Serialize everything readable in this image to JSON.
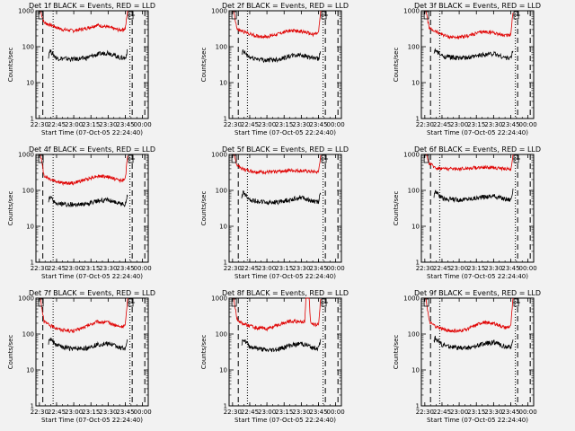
{
  "window": {
    "background": "#f2f2f2"
  },
  "colors": {
    "events": "#000000",
    "lld": "#e00000",
    "axes": "#000000",
    "markers": "#000000"
  },
  "chart_data": [
    {
      "type": "line",
      "title": "Det 1f BLACK = Events, RED = LLD",
      "xlabel": "Start Time (07-Oct-05 22:24:40)",
      "ylabel": "Counts/sec",
      "yscale": "log",
      "ylim": [
        1,
        1000
      ],
      "xlim": [
        "22:27",
        "00:05"
      ],
      "x_ticks": [
        "22:30",
        "22:45",
        "23:00",
        "23:15",
        "23:30",
        "23:45",
        "00:00"
      ],
      "y_ticks": [
        "1",
        "10",
        "100",
        "1000"
      ],
      "legend": "none",
      "grid": false,
      "markers": {
        "dashed": [
          "22:33",
          "23:51",
          "00:02"
        ],
        "dotted": [
          "22:42",
          "23:49"
        ]
      },
      "series": [
        {
          "name": "RED = LLD",
          "x": [
            "22:31",
            "22:34",
            "22:40",
            "22:50",
            "23:00",
            "23:10",
            "23:20",
            "23:30",
            "23:40",
            "23:45",
            "23:47"
          ],
          "values": [
            1000,
            470,
            400,
            300,
            280,
            320,
            400,
            350,
            290,
            320,
            1000
          ]
        },
        {
          "name": "BLACK = Events",
          "x": [
            "22:38",
            "22:39",
            "22:45",
            "23:00",
            "23:10",
            "23:20",
            "23:30",
            "23:40",
            "23:45",
            "23:47"
          ],
          "values": [
            55,
            80,
            48,
            45,
            48,
            60,
            70,
            50,
            48,
            80
          ]
        }
      ]
    },
    {
      "type": "line",
      "title": "Det 2f BLACK = Events, RED = LLD",
      "xlabel": "Start Time (07-Oct-05 22:24:40)",
      "ylabel": "Counts/sec",
      "yscale": "log",
      "ylim": [
        1,
        1000
      ],
      "xlim": [
        "22:27",
        "00:05"
      ],
      "x_ticks": [
        "22:30",
        "22:45",
        "23:00",
        "23:15",
        "23:30",
        "23:45",
        "00:00"
      ],
      "y_ticks": [
        "1",
        "10",
        "100",
        "1000"
      ],
      "legend": "none",
      "grid": false,
      "markers": {
        "dashed": [
          "22:35",
          "23:51",
          "00:02"
        ],
        "dotted": [
          "22:43",
          "23:49"
        ]
      },
      "series": [
        {
          "name": "RED = LLD",
          "x": [
            "22:31",
            "22:34",
            "22:40",
            "22:50",
            "23:00",
            "23:10",
            "23:20",
            "23:30",
            "23:40",
            "23:45",
            "23:47"
          ],
          "values": [
            1000,
            300,
            260,
            200,
            190,
            230,
            280,
            270,
            220,
            240,
            1000
          ]
        },
        {
          "name": "BLACK = Events",
          "x": [
            "22:38",
            "22:39",
            "22:45",
            "23:00",
            "23:10",
            "23:20",
            "23:30",
            "23:40",
            "23:45",
            "23:47"
          ],
          "values": [
            55,
            75,
            50,
            42,
            45,
            55,
            60,
            48,
            45,
            75
          ]
        }
      ]
    },
    {
      "type": "line",
      "title": "Det 3f BLACK = Events, RED = LLD",
      "xlabel": "Start Time (07-Oct-05 22:24:40)",
      "ylabel": "Counts/sec",
      "yscale": "log",
      "ylim": [
        1,
        1000
      ],
      "xlim": [
        "22:27",
        "00:05"
      ],
      "x_ticks": [
        "22:30",
        "22:45",
        "23:00",
        "23:15",
        "23:30",
        "23:45",
        "00:00"
      ],
      "y_ticks": [
        "1",
        "10",
        "100",
        "1000"
      ],
      "legend": "none",
      "grid": false,
      "markers": {
        "dashed": [
          "22:35",
          "23:51",
          "00:02"
        ],
        "dotted": [
          "22:43",
          "23:49"
        ]
      },
      "series": [
        {
          "name": "RED = LLD",
          "x": [
            "22:31",
            "22:34",
            "22:40",
            "22:50",
            "23:00",
            "23:10",
            "23:20",
            "23:30",
            "23:40",
            "23:45",
            "23:47"
          ],
          "values": [
            1000,
            320,
            260,
            190,
            180,
            210,
            260,
            250,
            200,
            220,
            1000
          ]
        },
        {
          "name": "BLACK = Events",
          "x": [
            "22:38",
            "22:39",
            "22:45",
            "23:00",
            "23:10",
            "23:20",
            "23:30",
            "23:40",
            "23:45",
            "23:47"
          ],
          "values": [
            60,
            80,
            55,
            48,
            50,
            60,
            65,
            50,
            48,
            80
          ]
        }
      ]
    },
    {
      "type": "line",
      "title": "Det 4f BLACK = Events, RED = LLD",
      "xlabel": "Start Time (07-Oct-05 22:24:40)",
      "ylabel": "Counts/sec",
      "yscale": "log",
      "ylim": [
        1,
        1000
      ],
      "xlim": [
        "22:27",
        "00:05"
      ],
      "x_ticks": [
        "22:30",
        "22:45",
        "23:00",
        "23:15",
        "23:30",
        "23:45",
        "00:00"
      ],
      "y_ticks": [
        "1",
        "10",
        "100",
        "1000"
      ],
      "legend": "none",
      "grid": false,
      "markers": {
        "dashed": [
          "22:33",
          "23:51",
          "00:02"
        ],
        "dotted": [
          "22:42",
          "23:49"
        ]
      },
      "series": [
        {
          "name": "RED = LLD",
          "x": [
            "22:31",
            "22:34",
            "22:40",
            "22:50",
            "23:00",
            "23:10",
            "23:20",
            "23:30",
            "23:40",
            "23:45",
            "23:47"
          ],
          "values": [
            1000,
            260,
            200,
            160,
            160,
            200,
            250,
            240,
            190,
            200,
            1000
          ]
        },
        {
          "name": "BLACK = Events",
          "x": [
            "22:38",
            "22:39",
            "22:45",
            "23:00",
            "23:10",
            "23:20",
            "23:30",
            "23:40",
            "23:45",
            "23:47"
          ],
          "values": [
            45,
            65,
            42,
            40,
            42,
            50,
            55,
            42,
            40,
            75
          ]
        }
      ]
    },
    {
      "type": "line",
      "title": "Det 5f BLACK = Events, RED = LLD",
      "xlabel": "Start Time (07-Oct-05 22:24:40)",
      "ylabel": "Counts/sec",
      "yscale": "log",
      "ylim": [
        1,
        1000
      ],
      "xlim": [
        "22:27",
        "00:05"
      ],
      "x_ticks": [
        "22:30",
        "22:45",
        "23:00",
        "23:15",
        "23:30",
        "23:45",
        "00:00"
      ],
      "y_ticks": [
        "1",
        "10",
        "100",
        "1000"
      ],
      "legend": "none",
      "grid": false,
      "markers": {
        "dashed": [
          "22:35",
          "23:51",
          "00:02"
        ],
        "dotted": [
          "22:43",
          "23:49"
        ]
      },
      "series": [
        {
          "name": "RED = LLD",
          "x": [
            "22:31",
            "22:34",
            "22:40",
            "22:50",
            "23:00",
            "23:10",
            "23:20",
            "23:30",
            "23:40",
            "23:45",
            "23:47"
          ],
          "values": [
            1000,
            500,
            380,
            330,
            320,
            340,
            360,
            350,
            330,
            320,
            1000
          ]
        },
        {
          "name": "BLACK = Events",
          "x": [
            "22:38",
            "22:39",
            "22:45",
            "23:00",
            "23:10",
            "23:20",
            "23:30",
            "23:40",
            "23:45",
            "23:47"
          ],
          "values": [
            60,
            90,
            55,
            45,
            48,
            55,
            65,
            50,
            48,
            90
          ]
        }
      ]
    },
    {
      "type": "line",
      "title": "Det 6f BLACK = Events, RED = LLD",
      "xlabel": "Start Time (07-Oct-05 22:24:40)",
      "ylabel": "Counts/sec",
      "yscale": "log",
      "ylim": [
        1,
        1000
      ],
      "xlim": [
        "22:27",
        "00:05"
      ],
      "x_ticks": [
        "22:30",
        "22:45",
        "23:00",
        "23:15",
        "23:30",
        "23:45",
        "00:00"
      ],
      "y_ticks": [
        "1",
        "10",
        "100",
        "1000"
      ],
      "legend": "none",
      "grid": false,
      "markers": {
        "dashed": [
          "22:35",
          "23:51",
          "00:02"
        ],
        "dotted": [
          "22:43",
          "23:49"
        ]
      },
      "series": [
        {
          "name": "RED = LLD",
          "x": [
            "22:31",
            "22:34",
            "22:40",
            "22:50",
            "23:00",
            "23:10",
            "23:20",
            "23:30",
            "23:40",
            "23:45",
            "23:47"
          ],
          "values": [
            1000,
            560,
            420,
            400,
            400,
            420,
            440,
            430,
            400,
            380,
            1000
          ]
        },
        {
          "name": "BLACK = Events",
          "x": [
            "22:38",
            "22:39",
            "22:45",
            "23:00",
            "23:10",
            "23:20",
            "23:30",
            "23:40",
            "23:45",
            "23:47"
          ],
          "values": [
            65,
            100,
            60,
            55,
            58,
            65,
            70,
            58,
            55,
            100
          ]
        }
      ]
    },
    {
      "type": "line",
      "title": "Det 7f BLACK = Events, RED = LLD",
      "xlabel": "Start Time (07-Oct-05 22:24:40)",
      "ylabel": "Counts/sec",
      "yscale": "log",
      "ylim": [
        1,
        1000
      ],
      "xlim": [
        "22:27",
        "00:05"
      ],
      "x_ticks": [
        "22:30",
        "22:45",
        "23:00",
        "23:15",
        "23:30",
        "23:45",
        "00:00"
      ],
      "y_ticks": [
        "1",
        "10",
        "100",
        "1000"
      ],
      "legend": "none",
      "grid": false,
      "markers": {
        "dashed": [
          "22:33",
          "23:51",
          "00:02"
        ],
        "dotted": [
          "22:42",
          "23:49"
        ]
      },
      "series": [
        {
          "name": "RED = LLD",
          "x": [
            "22:31",
            "22:34",
            "22:40",
            "22:50",
            "23:00",
            "23:10",
            "23:20",
            "23:30",
            "23:40",
            "23:45",
            "23:47"
          ],
          "values": [
            1000,
            220,
            170,
            130,
            120,
            160,
            220,
            210,
            160,
            170,
            1000
          ]
        },
        {
          "name": "BLACK = Events",
          "x": [
            "22:38",
            "22:39",
            "22:45",
            "23:00",
            "23:10",
            "23:20",
            "23:30",
            "23:40",
            "23:45",
            "23:47"
          ],
          "values": [
            55,
            75,
            48,
            38,
            40,
            50,
            55,
            42,
            40,
            65
          ]
        }
      ]
    },
    {
      "type": "line",
      "title": "Det 8f BLACK = Events, RED = LLD",
      "xlabel": "Start Time (07-Oct-05 22:24:40)",
      "ylabel": "Counts/sec",
      "yscale": "log",
      "ylim": [
        1,
        1000
      ],
      "xlim": [
        "22:27",
        "00:05"
      ],
      "x_ticks": [
        "22:30",
        "22:45",
        "23:00",
        "23:15",
        "23:30",
        "23:45",
        "00:00"
      ],
      "y_ticks": [
        "1",
        "10",
        "100",
        "1000"
      ],
      "legend": "none",
      "grid": false,
      "markers": {
        "dashed": [
          "22:35",
          "23:51",
          "00:02"
        ],
        "dotted": [
          "22:43",
          "23:49"
        ]
      },
      "series": [
        {
          "name": "RED = LLD",
          "x": [
            "22:31",
            "22:34",
            "22:40",
            "22:50",
            "23:00",
            "23:10",
            "23:20",
            "23:30",
            "23:33",
            "23:34",
            "23:37",
            "23:38",
            "23:40",
            "23:45",
            "23:47"
          ],
          "values": [
            1000,
            250,
            190,
            150,
            140,
            180,
            230,
            220,
            220,
            1000,
            1000,
            200,
            190,
            180,
            1000
          ]
        },
        {
          "name": "BLACK = Events",
          "x": [
            "22:38",
            "22:39",
            "22:45",
            "23:00",
            "23:10",
            "23:20",
            "23:30",
            "23:40",
            "23:45",
            "23:47"
          ],
          "values": [
            55,
            75,
            45,
            35,
            38,
            48,
            55,
            42,
            40,
            70
          ]
        }
      ]
    },
    {
      "type": "line",
      "title": "Det 9f BLACK = Events, RED = LLD",
      "xlabel": "Start Time (07-Oct-05 22:24:40)",
      "ylabel": "Counts/sec",
      "yscale": "log",
      "ylim": [
        1,
        1000
      ],
      "xlim": [
        "22:27",
        "00:05"
      ],
      "x_ticks": [
        "22:30",
        "22:45",
        "23:00",
        "23:15",
        "23:30",
        "23:45",
        "00:00"
      ],
      "y_ticks": [
        "1",
        "10",
        "100",
        "1000"
      ],
      "legend": "none",
      "grid": false,
      "markers": {
        "dashed": [
          "22:35",
          "23:51",
          "00:02"
        ],
        "dotted": [
          "22:43",
          "23:49"
        ]
      },
      "series": [
        {
          "name": "RED = LLD",
          "x": [
            "22:31",
            "22:34",
            "22:40",
            "22:50",
            "23:00",
            "23:10",
            "23:20",
            "23:30",
            "23:40",
            "23:45",
            "23:47"
          ],
          "values": [
            1000,
            210,
            160,
            125,
            120,
            150,
            210,
            200,
            150,
            160,
            1000
          ]
        },
        {
          "name": "BLACK = Events",
          "x": [
            "22:38",
            "22:39",
            "22:45",
            "23:00",
            "23:10",
            "23:20",
            "23:30",
            "23:40",
            "23:45",
            "23:47"
          ],
          "values": [
            60,
            80,
            50,
            40,
            42,
            52,
            60,
            45,
            42,
            70
          ]
        }
      ]
    }
  ]
}
